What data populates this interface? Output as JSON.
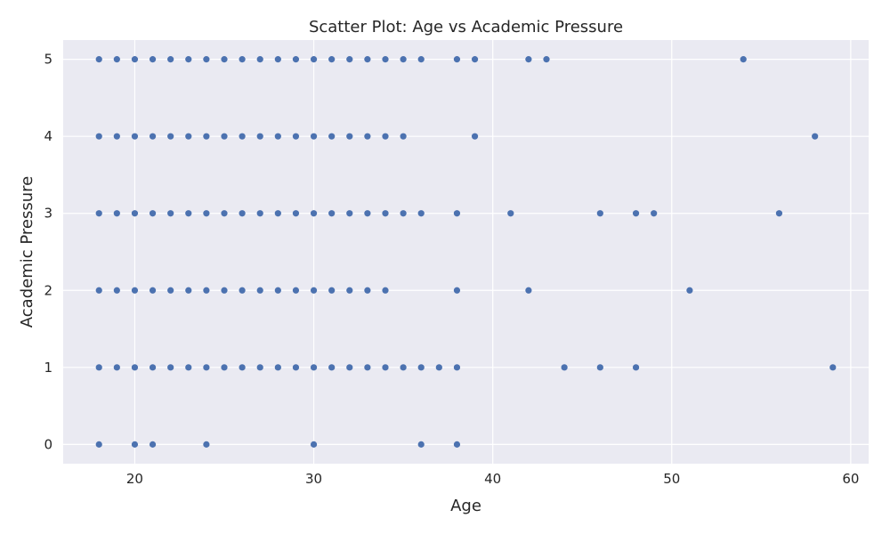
{
  "chart_data": {
    "type": "scatter",
    "title": "Scatter Plot: Age vs Academic Pressure",
    "xlabel": "Age",
    "ylabel": "Academic Pressure",
    "xlim": [
      16,
      61
    ],
    "ylim": [
      -0.25,
      5.25
    ],
    "xticks": [
      20,
      30,
      40,
      50,
      60
    ],
    "yticks": [
      0,
      1,
      2,
      3,
      4,
      5
    ],
    "grid": true,
    "background": "#eaeaf2",
    "point_color": "#4c72b0",
    "points": [
      [
        18,
        5
      ],
      [
        19,
        5
      ],
      [
        20,
        5
      ],
      [
        21,
        5
      ],
      [
        22,
        5
      ],
      [
        23,
        5
      ],
      [
        24,
        5
      ],
      [
        25,
        5
      ],
      [
        26,
        5
      ],
      [
        27,
        5
      ],
      [
        28,
        5
      ],
      [
        29,
        5
      ],
      [
        30,
        5
      ],
      [
        31,
        5
      ],
      [
        32,
        5
      ],
      [
        33,
        5
      ],
      [
        34,
        5
      ],
      [
        35,
        5
      ],
      [
        36,
        5
      ],
      [
        38,
        5
      ],
      [
        39,
        5
      ],
      [
        42,
        5
      ],
      [
        43,
        5
      ],
      [
        54,
        5
      ],
      [
        18,
        4
      ],
      [
        19,
        4
      ],
      [
        20,
        4
      ],
      [
        21,
        4
      ],
      [
        22,
        4
      ],
      [
        23,
        4
      ],
      [
        24,
        4
      ],
      [
        25,
        4
      ],
      [
        26,
        4
      ],
      [
        27,
        4
      ],
      [
        28,
        4
      ],
      [
        29,
        4
      ],
      [
        30,
        4
      ],
      [
        31,
        4
      ],
      [
        32,
        4
      ],
      [
        33,
        4
      ],
      [
        34,
        4
      ],
      [
        35,
        4
      ],
      [
        39,
        4
      ],
      [
        58,
        4
      ],
      [
        18,
        3
      ],
      [
        19,
        3
      ],
      [
        20,
        3
      ],
      [
        21,
        3
      ],
      [
        22,
        3
      ],
      [
        23,
        3
      ],
      [
        24,
        3
      ],
      [
        25,
        3
      ],
      [
        26,
        3
      ],
      [
        27,
        3
      ],
      [
        28,
        3
      ],
      [
        29,
        3
      ],
      [
        30,
        3
      ],
      [
        31,
        3
      ],
      [
        32,
        3
      ],
      [
        33,
        3
      ],
      [
        34,
        3
      ],
      [
        35,
        3
      ],
      [
        36,
        3
      ],
      [
        38,
        3
      ],
      [
        41,
        3
      ],
      [
        46,
        3
      ],
      [
        48,
        3
      ],
      [
        49,
        3
      ],
      [
        56,
        3
      ],
      [
        18,
        2
      ],
      [
        19,
        2
      ],
      [
        20,
        2
      ],
      [
        21,
        2
      ],
      [
        22,
        2
      ],
      [
        23,
        2
      ],
      [
        24,
        2
      ],
      [
        25,
        2
      ],
      [
        26,
        2
      ],
      [
        27,
        2
      ],
      [
        28,
        2
      ],
      [
        29,
        2
      ],
      [
        30,
        2
      ],
      [
        31,
        2
      ],
      [
        32,
        2
      ],
      [
        33,
        2
      ],
      [
        34,
        2
      ],
      [
        38,
        2
      ],
      [
        42,
        2
      ],
      [
        51,
        2
      ],
      [
        18,
        1
      ],
      [
        19,
        1
      ],
      [
        20,
        1
      ],
      [
        21,
        1
      ],
      [
        22,
        1
      ],
      [
        23,
        1
      ],
      [
        24,
        1
      ],
      [
        25,
        1
      ],
      [
        26,
        1
      ],
      [
        27,
        1
      ],
      [
        28,
        1
      ],
      [
        29,
        1
      ],
      [
        30,
        1
      ],
      [
        31,
        1
      ],
      [
        32,
        1
      ],
      [
        33,
        1
      ],
      [
        34,
        1
      ],
      [
        35,
        1
      ],
      [
        36,
        1
      ],
      [
        37,
        1
      ],
      [
        38,
        1
      ],
      [
        44,
        1
      ],
      [
        46,
        1
      ],
      [
        48,
        1
      ],
      [
        59,
        1
      ],
      [
        18,
        0
      ],
      [
        20,
        0
      ],
      [
        21,
        0
      ],
      [
        24,
        0
      ],
      [
        30,
        0
      ],
      [
        36,
        0
      ],
      [
        38,
        0
      ]
    ]
  }
}
